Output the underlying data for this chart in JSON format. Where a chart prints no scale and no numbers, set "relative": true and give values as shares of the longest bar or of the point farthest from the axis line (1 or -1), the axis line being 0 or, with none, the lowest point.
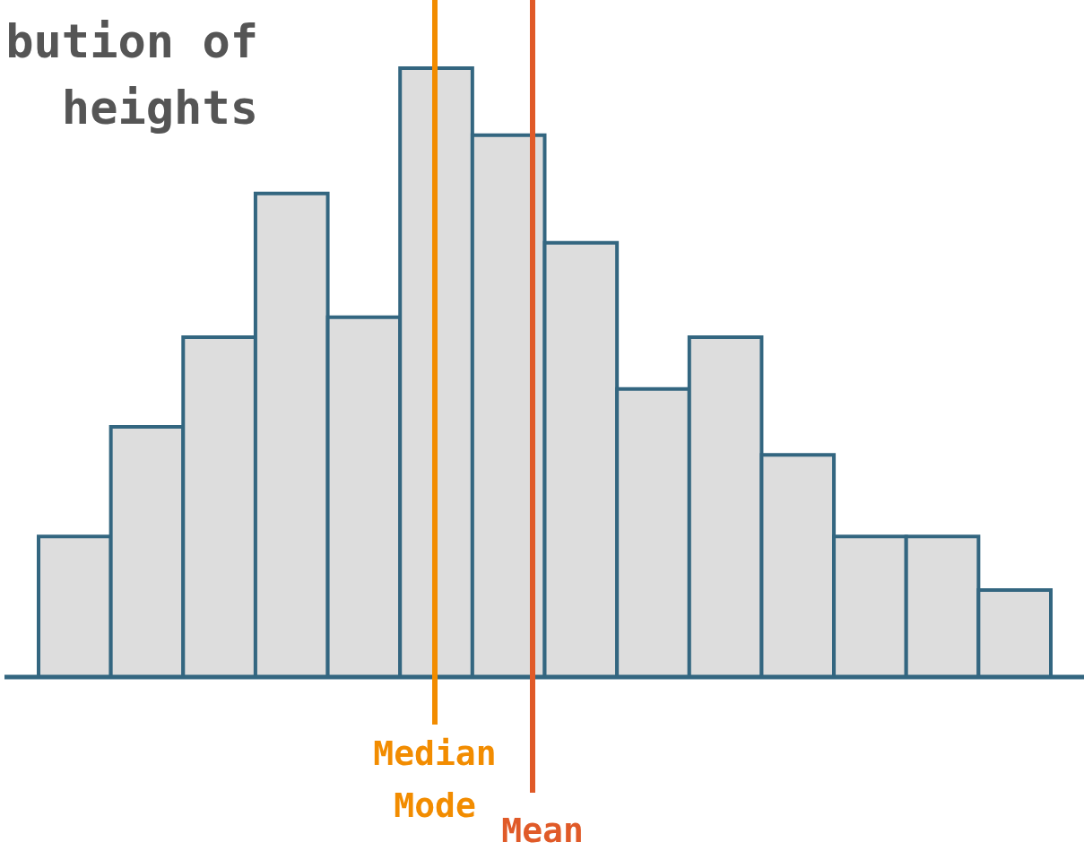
{
  "chart_data": {
    "type": "bar",
    "title": "bution of\nheights",
    "relative": true,
    "categories": [
      null,
      null,
      null,
      null,
      null,
      null,
      null,
      null,
      null,
      null,
      null,
      null,
      null,
      null
    ],
    "values": [
      0.231,
      0.411,
      0.558,
      0.794,
      0.591,
      1,
      0.89,
      0.713,
      0.473,
      0.558,
      0.365,
      0.231,
      0.231,
      0.143
    ],
    "color": "#dddddd",
    "ref_lines": [
      {
        "axis": "x",
        "label": "Median",
        "color": "#f28c00"
      },
      {
        "axis": "x",
        "label": "Mode",
        "color": "#f28c00"
      },
      {
        "axis": "x",
        "label": "Mean",
        "color": "#e05a28"
      }
    ]
  }
}
